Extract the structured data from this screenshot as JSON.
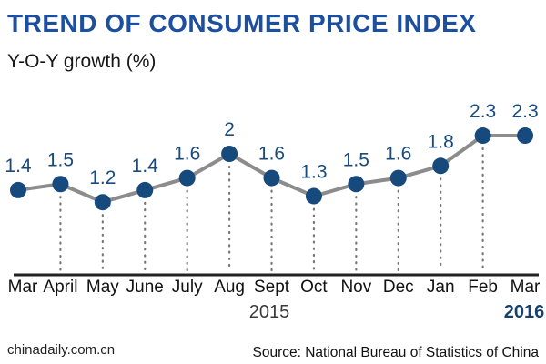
{
  "header": {
    "title": "TREND OF CONSUMER PRICE INDEX",
    "subtitle": "Y-O-Y growth (%)"
  },
  "chart_data": {
    "type": "line",
    "title": "TREND OF CONSUMER PRICE INDEX",
    "subtitle": "Y-O-Y growth (%)",
    "categories": [
      "Mar",
      "April",
      "May",
      "June",
      "July",
      "Aug",
      "Sept",
      "Oct",
      "Nov",
      "Dec",
      "Jan",
      "Feb",
      "Mar"
    ],
    "values": [
      1.4,
      1.5,
      1.2,
      1.4,
      1.6,
      2,
      1.6,
      1.3,
      1.5,
      1.6,
      1.8,
      2.3,
      2.3
    ],
    "value_labels": [
      "1.4",
      "1.5",
      "1.2",
      "1.4",
      "1.6",
      "2",
      "1.6",
      "1.3",
      "1.5",
      "1.6",
      "1.8",
      "2.3",
      "2.3"
    ],
    "year_left": "2015",
    "year_right": "2016",
    "xlabel": "",
    "ylabel": "Y-O-Y growth (%)",
    "ylim": [
      0,
      2.8
    ],
    "grid": "vertical dotted droplines from each point to baseline",
    "legend": "none",
    "colors": {
      "title_blue": "#1d4f9f",
      "point_navy": "#174a7c",
      "value_label_navy": "#184a7d",
      "line_gray": "#8c8c8c",
      "dropline_gray": "#777777",
      "axis_dark": "#222222",
      "month_label": "#111111",
      "year_left_color": "#3a3a3a",
      "year_right_color": "#16406f"
    }
  },
  "footer": {
    "site": "chinadaily.com.cn",
    "source": "Source: National Bureau of Statistics of China"
  }
}
